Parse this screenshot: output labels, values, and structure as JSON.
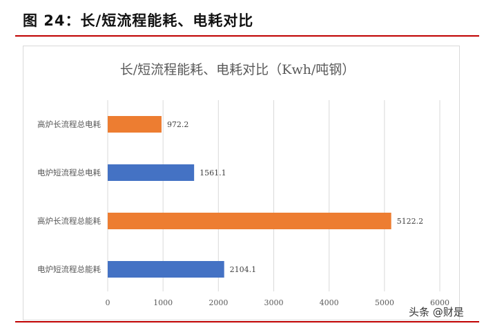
{
  "figure": {
    "title": "图 24：长/短流程能耗、电耗对比"
  },
  "watermark": "头条 @财是",
  "chart_data": {
    "type": "bar",
    "orientation": "horizontal",
    "title": "长/短流程能耗、电耗对比（Kwh/吨钢）",
    "categories": [
      "高炉长流程总电耗",
      "电炉短流程总电耗",
      "高炉长流程总能耗",
      "电炉短流程总能耗"
    ],
    "values": [
      972.2,
      1561.1,
      5122.2,
      2104.1
    ],
    "value_labels": [
      "972.2",
      "1561.1",
      "5122.2",
      "2104.1"
    ],
    "colors": [
      "#ed7d31",
      "#4472c4",
      "#ed7d31",
      "#4472c4"
    ],
    "xlim": [
      0,
      6000
    ],
    "xticks": [
      0,
      1000,
      2000,
      3000,
      4000,
      5000,
      6000
    ],
    "grid": true,
    "legend": "none"
  }
}
